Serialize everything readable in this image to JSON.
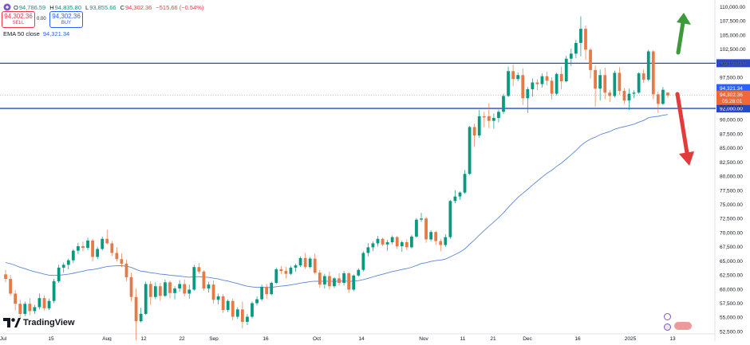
{
  "header": {
    "ohlc": {
      "o_label": "O",
      "o": "94,786.59",
      "h_label": "H",
      "h": "94,835.80",
      "l_label": "L",
      "l": "93,855.66",
      "c_label": "C",
      "c": "94,302.36",
      "change": "−515.66 (−0.54%)"
    },
    "sell": {
      "price": "94,302.36",
      "label": "SELL"
    },
    "spread": "0.00",
    "buy": {
      "price": "94,302.36",
      "label": "BUY"
    },
    "ema": {
      "label": "EMA 50 close",
      "value": "94,321.34"
    }
  },
  "branding": {
    "logo_text": "TradingView"
  },
  "colors": {
    "up": "#089981",
    "down": "#e57a47",
    "ema": "#5b86d6",
    "level": "#2948c8",
    "arrow_up": "#3d9a3a",
    "arrow_down": "#e23b3b",
    "price_tag": "#f0683a",
    "ema_tag": "#2962ff"
  },
  "chart_data": {
    "type": "candlestick",
    "title": "",
    "y_axis": {
      "range": [
        50800,
        111200
      ],
      "ticks": [
        "52,500.00",
        "55,000.00",
        "57,500.00",
        "60,000.00",
        "62,500.00",
        "65,000.00",
        "67,500.00",
        "70,000.00",
        "72,500.00",
        "75,000.00",
        "77,500.00",
        "80,000.00",
        "82,500.00",
        "85,000.00",
        "87,500.00",
        "90,000.00",
        "92,500.00",
        "95,000.00",
        "97,500.00",
        "100,000.00",
        "102,500.00",
        "105,000.00",
        "107,500.00",
        "110,000.00"
      ]
    },
    "x_axis": {
      "ticks": [
        "Jul",
        "15",
        "Aug",
        "12",
        "22",
        "Sep",
        "16",
        "Oct",
        "14",
        "Nov",
        "11",
        "21",
        "Dec",
        "16",
        "2025",
        "13"
      ]
    },
    "horizontal_levels": [
      {
        "value": 100000,
        "label": "100,000.00"
      },
      {
        "value": 92000,
        "label": "92,000.00"
      }
    ],
    "price_tags": {
      "ema": {
        "value": 94321.34,
        "label": "94,321.34"
      },
      "last": {
        "value": 94302.36,
        "label": "94,302.36",
        "countdown": "05:28:01"
      }
    },
    "arrows": [
      {
        "direction": "up",
        "color": "green"
      },
      {
        "direction": "down",
        "color": "red"
      }
    ],
    "candles": [
      [
        62600,
        63400,
        61200,
        61800
      ],
      [
        61800,
        62500,
        58800,
        59200
      ],
      [
        59200,
        59800,
        56200,
        57400
      ],
      [
        57400,
        58100,
        54800,
        55600
      ],
      [
        55600,
        57800,
        55200,
        57400
      ],
      [
        57400,
        58400,
        55400,
        56100
      ],
      [
        56100,
        57200,
        55600,
        56800
      ],
      [
        56800,
        59200,
        56400,
        58400
      ],
      [
        58400,
        58900,
        56200,
        56600
      ],
      [
        56600,
        58300,
        56300,
        57900
      ],
      [
        57900,
        61800,
        57500,
        61400
      ],
      [
        61400,
        64300,
        61100,
        63800
      ],
      [
        63800,
        64700,
        62900,
        64300
      ],
      [
        64300,
        65400,
        63500,
        65100
      ],
      [
        65100,
        67100,
        64600,
        66800
      ],
      [
        66800,
        68200,
        66200,
        67600
      ],
      [
        67600,
        68400,
        66700,
        67300
      ],
      [
        67300,
        69100,
        66900,
        68600
      ],
      [
        68600,
        68900,
        64900,
        65700
      ],
      [
        65700,
        67500,
        65300,
        67100
      ],
      [
        67100,
        69300,
        66800,
        68900
      ],
      [
        68900,
        70500,
        67900,
        68100
      ],
      [
        68100,
        68500,
        65900,
        66400
      ],
      [
        66400,
        67400,
        64900,
        65300
      ],
      [
        65300,
        66300,
        63900,
        64500
      ],
      [
        64500,
        65200,
        61400,
        62100
      ],
      [
        62100,
        62900,
        57800,
        58600
      ],
      [
        58600,
        60100,
        50900,
        54300
      ],
      [
        54300,
        56700,
        54100,
        55600
      ],
      [
        55600,
        61300,
        55400,
        60900
      ],
      [
        60900,
        61400,
        57200,
        58600
      ],
      [
        58600,
        61200,
        58200,
        60500
      ],
      [
        60500,
        61100,
        57900,
        58800
      ],
      [
        58800,
        61700,
        58600,
        61200
      ],
      [
        61200,
        61500,
        58400,
        59300
      ],
      [
        59300,
        60500,
        58200,
        60100
      ],
      [
        60100,
        61600,
        59500,
        60900
      ],
      [
        60900,
        61700,
        58700,
        59200
      ],
      [
        59200,
        60800,
        58300,
        59900
      ],
      [
        59900,
        64300,
        59700,
        63900
      ],
      [
        63900,
        64600,
        62700,
        63100
      ],
      [
        63100,
        63300,
        59700,
        60100
      ],
      [
        60100,
        61300,
        59400,
        60800
      ],
      [
        60800,
        61500,
        57400,
        58100
      ],
      [
        58100,
        59200,
        57300,
        58700
      ],
      [
        58700,
        59100,
        55800,
        56300
      ],
      [
        56300,
        58200,
        55900,
        57900
      ],
      [
        57900,
        58300,
        54500,
        55100
      ],
      [
        55100,
        56800,
        54700,
        56400
      ],
      [
        56400,
        57800,
        53000,
        54200
      ],
      [
        54200,
        55600,
        53600,
        55100
      ],
      [
        55100,
        57800,
        54800,
        57500
      ],
      [
        57500,
        58700,
        57100,
        58200
      ],
      [
        58200,
        60800,
        57900,
        60400
      ],
      [
        60400,
        60900,
        58300,
        59100
      ],
      [
        59100,
        61300,
        58900,
        61100
      ],
      [
        61100,
        63800,
        60900,
        63500
      ],
      [
        63500,
        64100,
        62700,
        63200
      ],
      [
        63200,
        63900,
        61900,
        62700
      ],
      [
        62700,
        64100,
        62500,
        63800
      ],
      [
        63800,
        64500,
        63100,
        64200
      ],
      [
        64200,
        65800,
        63900,
        65500
      ],
      [
        65500,
        66400,
        63600,
        63900
      ],
      [
        63900,
        65700,
        63700,
        65400
      ],
      [
        65400,
        66300,
        62600,
        62900
      ],
      [
        62900,
        63400,
        60200,
        60800
      ],
      [
        60800,
        62700,
        60100,
        62300
      ],
      [
        62300,
        63100,
        59900,
        60500
      ],
      [
        60500,
        62100,
        60200,
        61900
      ],
      [
        61900,
        62800,
        60600,
        61100
      ],
      [
        61100,
        63200,
        60600,
        62800
      ],
      [
        62800,
        63000,
        59300,
        59900
      ],
      [
        59900,
        62600,
        59600,
        62400
      ],
      [
        62400,
        63700,
        62200,
        63400
      ],
      [
        63400,
        66700,
        63100,
        66400
      ],
      [
        66400,
        68100,
        65800,
        67400
      ],
      [
        67400,
        68400,
        66700,
        68100
      ],
      [
        68100,
        69400,
        67500,
        68900
      ],
      [
        68900,
        69100,
        67600,
        67900
      ],
      [
        67900,
        68700,
        66800,
        68300
      ],
      [
        68300,
        69500,
        67900,
        69200
      ],
      [
        69200,
        69400,
        67100,
        67600
      ],
      [
        67600,
        68600,
        66600,
        68300
      ],
      [
        68300,
        68800,
        66900,
        67400
      ],
      [
        67400,
        69600,
        67200,
        69300
      ],
      [
        69300,
        72600,
        69100,
        72300
      ],
      [
        72300,
        73500,
        71900,
        72500
      ],
      [
        72500,
        72800,
        68200,
        68800
      ],
      [
        68800,
        70400,
        68500,
        70100
      ],
      [
        70100,
        70300,
        67800,
        68500
      ],
      [
        68500,
        68900,
        66700,
        67800
      ],
      [
        67800,
        69700,
        67500,
        69200
      ],
      [
        69200,
        75800,
        68900,
        75600
      ],
      [
        75600,
        77500,
        75200,
        76400
      ],
      [
        76400,
        77300,
        75800,
        77100
      ],
      [
        77100,
        81100,
        76900,
        80400
      ],
      [
        80400,
        88900,
        80200,
        88700
      ],
      [
        88700,
        89300,
        85200,
        87200
      ],
      [
        87200,
        91700,
        86800,
        90600
      ],
      [
        90600,
        91400,
        88700,
        90400
      ],
      [
        90600,
        92900,
        88500,
        89800
      ],
      [
        89800,
        91100,
        88400,
        90300
      ],
      [
        90300,
        91800,
        89500,
        91400
      ],
      [
        91400,
        94600,
        91000,
        94200
      ],
      [
        94200,
        99400,
        94000,
        98600
      ],
      [
        98600,
        99800,
        95900,
        97200
      ],
      [
        97200,
        98400,
        96800,
        97900
      ],
      [
        97900,
        99100,
        92600,
        93800
      ],
      [
        93800,
        95800,
        91200,
        95400
      ],
      [
        95400,
        97300,
        94100,
        96600
      ],
      [
        96600,
        97200,
        95200,
        96300
      ],
      [
        96300,
        98200,
        95700,
        97700
      ],
      [
        97700,
        98500,
        96100,
        96900
      ],
      [
        96900,
        97500,
        93600,
        94600
      ],
      [
        94600,
        98300,
        94300,
        98100
      ],
      [
        98100,
        99400,
        95400,
        96800
      ],
      [
        96800,
        101300,
        96600,
        100800
      ],
      [
        100800,
        102600,
        99500,
        101700
      ],
      [
        101700,
        104100,
        100900,
        103600
      ],
      [
        103600,
        108300,
        101200,
        106100
      ],
      [
        106100,
        106700,
        100600,
        102400
      ],
      [
        102400,
        102700,
        97300,
        98800
      ],
      [
        98800,
        99600,
        92300,
        95500
      ],
      [
        95500,
        98900,
        93400,
        97900
      ],
      [
        97900,
        99200,
        93600,
        94800
      ],
      [
        94800,
        95300,
        93100,
        94200
      ],
      [
        94200,
        98700,
        93900,
        98300
      ],
      [
        98300,
        99300,
        94400,
        95100
      ],
      [
        95100,
        95600,
        92800,
        93400
      ],
      [
        93400,
        95500,
        91700,
        94600
      ],
      [
        94600,
        95200,
        93800,
        94800
      ],
      [
        94800,
        98400,
        94600,
        98200
      ],
      [
        98200,
        98900,
        96500,
        97100
      ],
      [
        97100,
        102400,
        96800,
        102100
      ],
      [
        102100,
        102300,
        93600,
        94500
      ],
      [
        94500,
        95000,
        91200,
        92800
      ],
      [
        92800,
        95800,
        92600,
        95300
      ],
      [
        94786.59,
        94835.8,
        93855.66,
        94302.36
      ]
    ]
  }
}
